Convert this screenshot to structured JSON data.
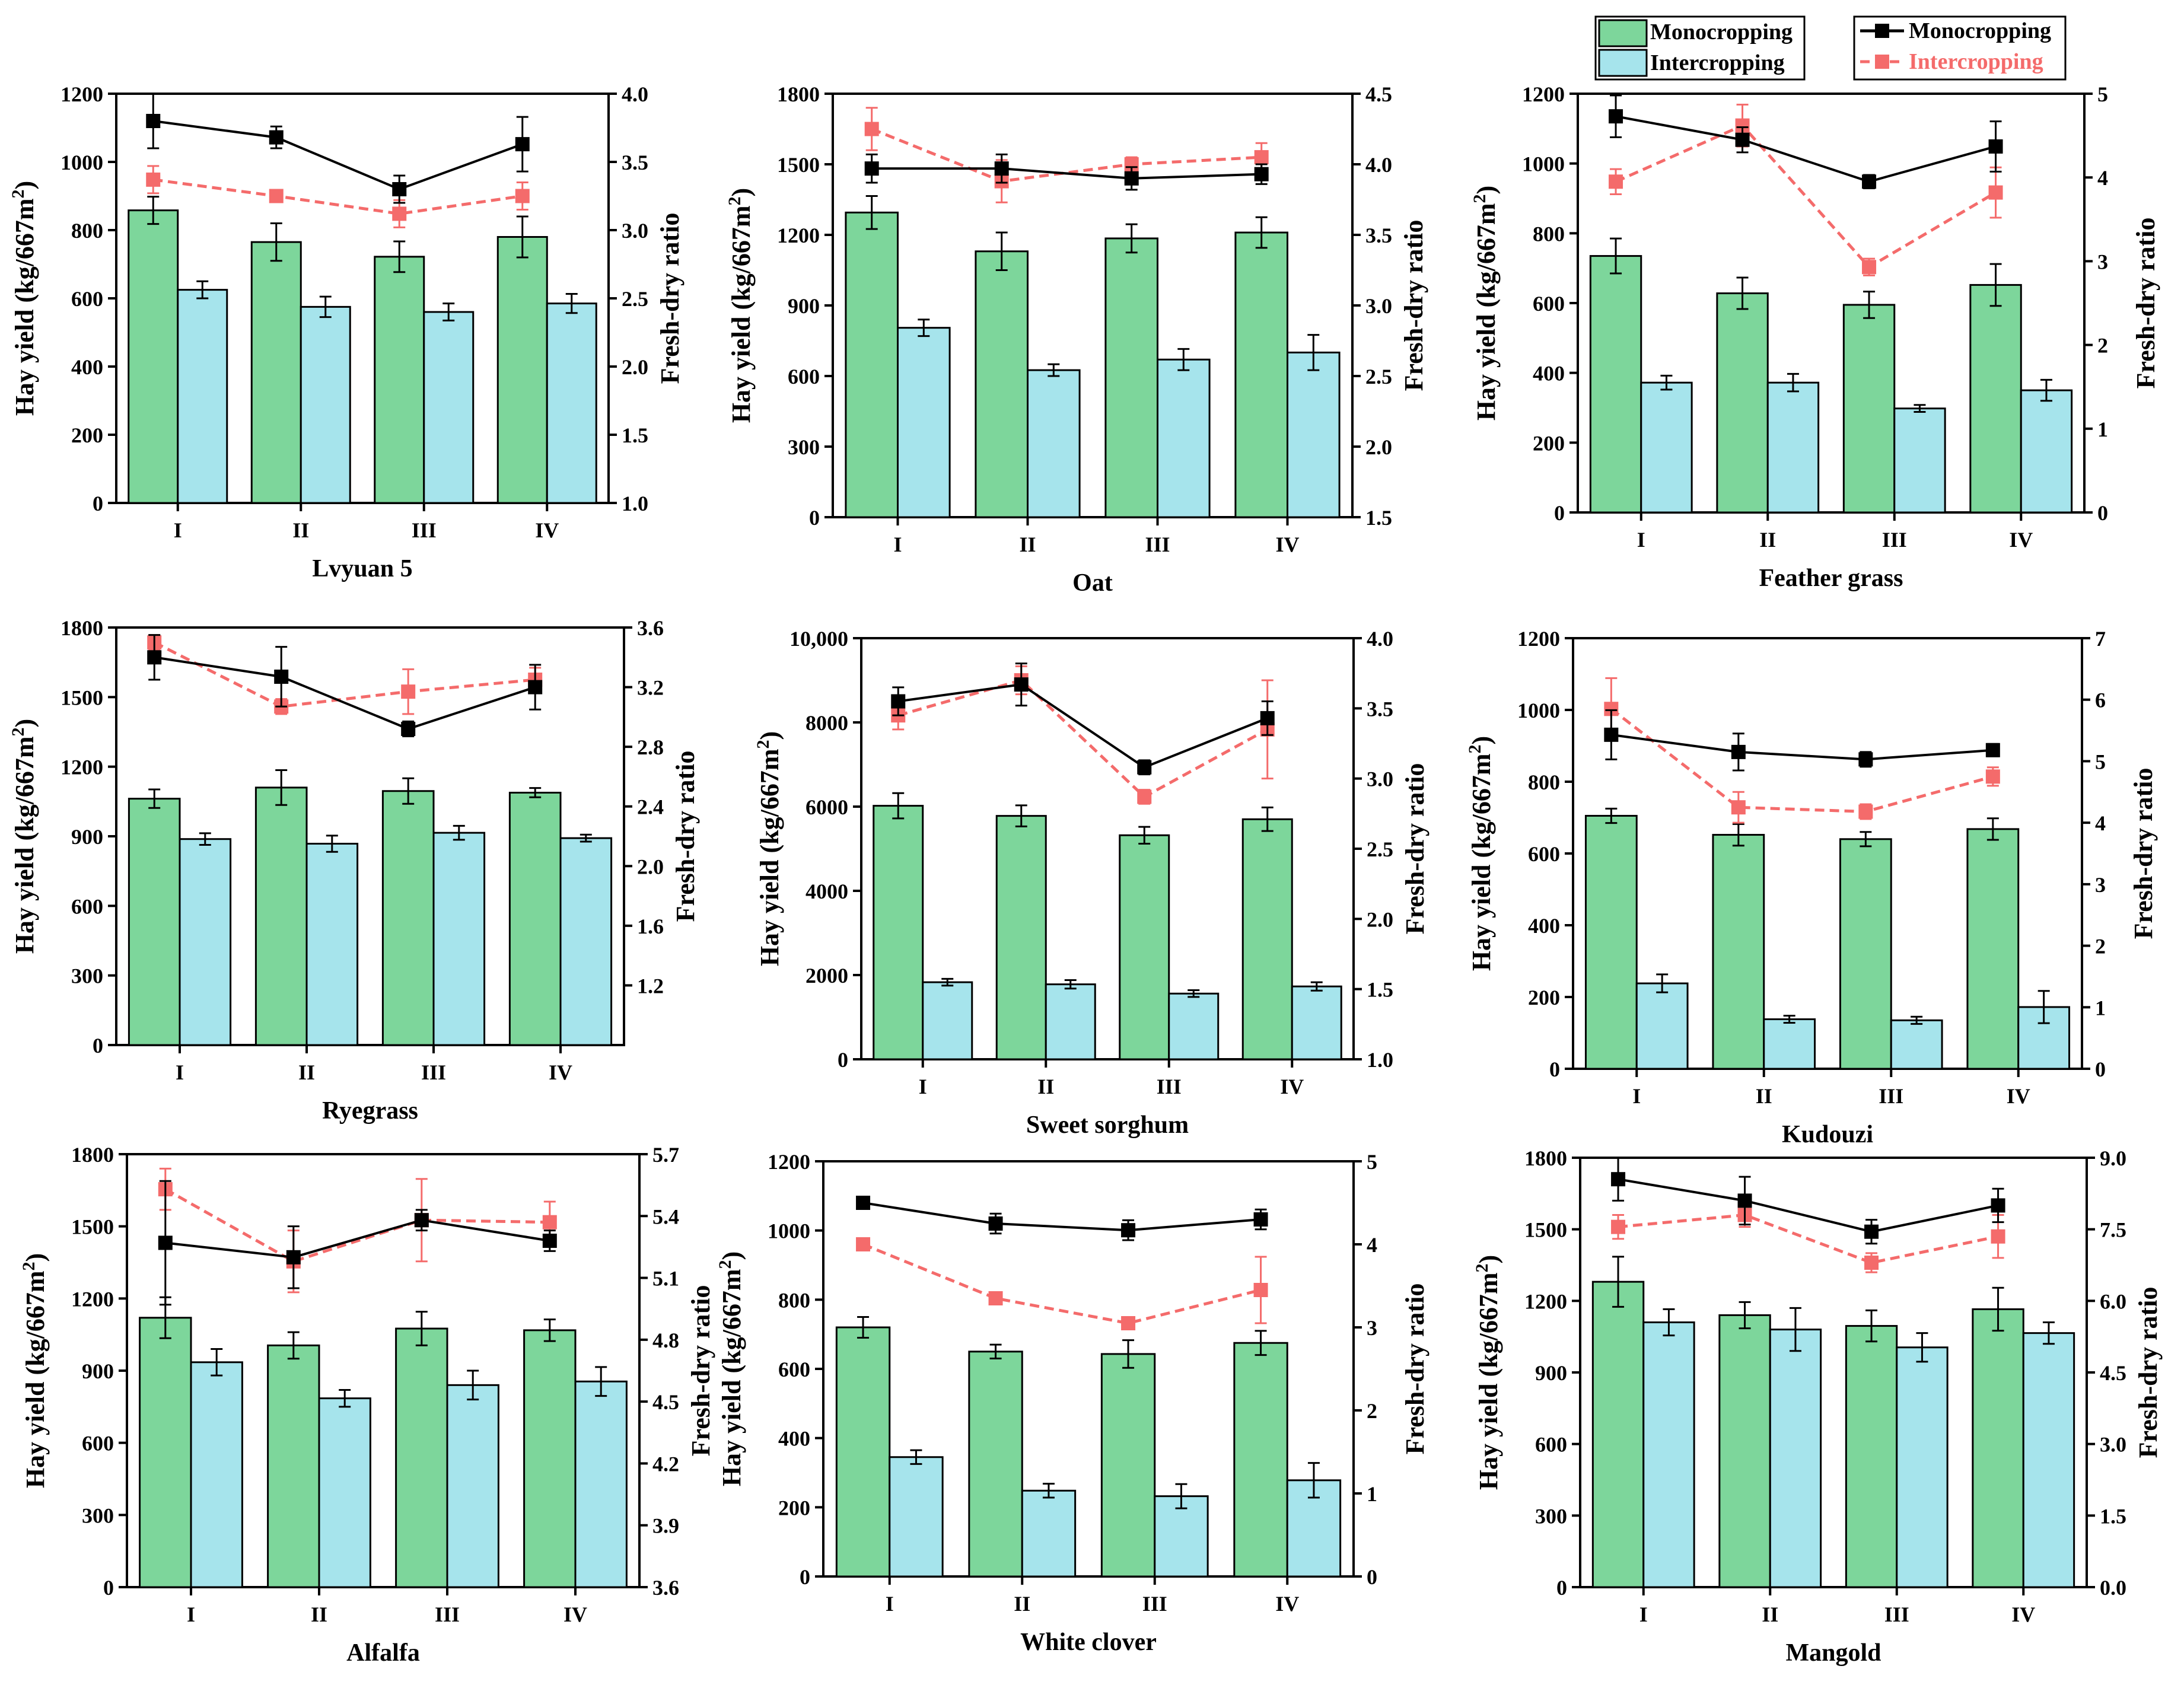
{
  "legend": {
    "bars": [
      "Monocropping",
      "Intercropping"
    ],
    "lines": [
      "Monocropping",
      "Intercropping"
    ]
  },
  "colors": {
    "mono_bar": "#7dd69b",
    "inter_bar": "#a6e4ec",
    "mono_line": "#000000",
    "inter_line": "#f46b6b",
    "axis": "#000000"
  },
  "chart_data": [
    {
      "type": "bar",
      "title": "Lvyuan 5",
      "categories": [
        "I",
        "II",
        "III",
        "IV"
      ],
      "ylabel": "Hay yield (kg/667m2)",
      "y2label": "Fresh-dry ratio",
      "ylim": [
        0,
        1200
      ],
      "yticks": [
        "0",
        "200",
        "400",
        "600",
        "800",
        "1000",
        "1200"
      ],
      "y2lim": [
        1.0,
        4.0
      ],
      "y2ticks": [
        "1.0",
        "1.5",
        "2.0",
        "2.5",
        "3.0",
        "3.5",
        "4.0"
      ],
      "series": [
        {
          "name": "Monocropping",
          "kind": "bar",
          "values": [
            858,
            765,
            722,
            780
          ],
          "errors": [
            40,
            55,
            45,
            60
          ]
        },
        {
          "name": "Intercropping",
          "kind": "bar",
          "values": [
            625,
            575,
            560,
            585
          ],
          "errors": [
            25,
            30,
            25,
            28
          ]
        },
        {
          "name": "Monocropping",
          "kind": "line",
          "values": [
            3.8,
            3.68,
            3.3,
            3.63
          ],
          "errors": [
            0.2,
            0.08,
            0.1,
            0.2
          ]
        },
        {
          "name": "Intercropping",
          "kind": "line",
          "values": [
            3.37,
            3.25,
            3.12,
            3.25
          ],
          "errors": [
            0.1,
            0.02,
            0.1,
            0.1
          ]
        }
      ]
    },
    {
      "type": "bar",
      "title": "Oat",
      "categories": [
        "I",
        "II",
        "III",
        "IV"
      ],
      "ylabel": "Hay yield (kg/667m2)",
      "y2label": "Fresh-dry ratio",
      "ylim": [
        0,
        1800
      ],
      "yticks": [
        "0",
        "300",
        "600",
        "900",
        "1200",
        "1500",
        "1800"
      ],
      "y2lim": [
        1.5,
        4.5
      ],
      "y2ticks": [
        "1.5",
        "2.0",
        "2.5",
        "3.0",
        "3.5",
        "4.0",
        "4.5"
      ],
      "series": [
        {
          "name": "Monocropping",
          "kind": "bar",
          "values": [
            1295,
            1130,
            1185,
            1210
          ],
          "errors": [
            70,
            80,
            60,
            65
          ]
        },
        {
          "name": "Intercropping",
          "kind": "bar",
          "values": [
            805,
            625,
            670,
            700
          ],
          "errors": [
            35,
            25,
            45,
            75
          ]
        },
        {
          "name": "Monocropping",
          "kind": "line",
          "values": [
            3.97,
            3.97,
            3.9,
            3.93
          ],
          "errors": [
            0.1,
            0.1,
            0.08,
            0.07
          ]
        },
        {
          "name": "Intercropping",
          "kind": "line",
          "values": [
            4.25,
            3.88,
            4.0,
            4.05
          ],
          "errors": [
            0.15,
            0.15,
            0.05,
            0.1
          ]
        }
      ]
    },
    {
      "type": "bar",
      "title": "Feather grass",
      "categories": [
        "I",
        "II",
        "III",
        "IV"
      ],
      "ylabel": "Hay yield (kg/667m2)",
      "y2label": "Fresh-dry ratio",
      "ylim": [
        0,
        1200
      ],
      "yticks": [
        "0",
        "200",
        "400",
        "600",
        "800",
        "1000",
        "1200"
      ],
      "y2lim": [
        0,
        5
      ],
      "y2ticks": [
        "0",
        "1",
        "2",
        "3",
        "4",
        "5"
      ],
      "series": [
        {
          "name": "Monocropping",
          "kind": "bar",
          "values": [
            735,
            628,
            595,
            652
          ],
          "errors": [
            50,
            45,
            38,
            60
          ]
        },
        {
          "name": "Intercropping",
          "kind": "bar",
          "values": [
            372,
            372,
            298,
            350
          ],
          "errors": [
            20,
            25,
            10,
            30
          ]
        },
        {
          "name": "Monocropping",
          "kind": "line",
          "values": [
            4.73,
            4.45,
            3.95,
            4.37
          ],
          "errors": [
            0.25,
            0.15,
            0.08,
            0.3
          ]
        },
        {
          "name": "Intercropping",
          "kind": "line",
          "values": [
            3.95,
            4.62,
            2.93,
            3.82
          ],
          "errors": [
            0.15,
            0.25,
            0.1,
            0.3
          ]
        }
      ]
    },
    {
      "type": "bar",
      "title": "Ryegrass",
      "categories": [
        "I",
        "II",
        "III",
        "IV"
      ],
      "ylabel": "Hay yield (kg/667m2)",
      "y2label": "Fresh-dry ratio",
      "ylim": [
        0,
        1800
      ],
      "yticks": [
        "0",
        "300",
        "600",
        "900",
        "1200",
        "1500",
        "1800"
      ],
      "y2lim": [
        0.8,
        3.6
      ],
      "y2ticks": [
        "1.2",
        "1.6",
        "2.0",
        "2.4",
        "2.8",
        "3.2",
        "3.6"
      ],
      "series": [
        {
          "name": "Monocropping",
          "kind": "bar",
          "values": [
            1062,
            1110,
            1095,
            1088
          ],
          "errors": [
            40,
            75,
            55,
            20
          ]
        },
        {
          "name": "Intercropping",
          "kind": "bar",
          "values": [
            888,
            868,
            915,
            892
          ],
          "errors": [
            25,
            35,
            30,
            15
          ]
        },
        {
          "name": "Monocropping",
          "kind": "line",
          "values": [
            3.4,
            3.27,
            2.92,
            3.2
          ],
          "errors": [
            0.15,
            0.2,
            0.05,
            0.15
          ]
        },
        {
          "name": "Intercropping",
          "kind": "line",
          "values": [
            3.5,
            3.07,
            3.17,
            3.25
          ],
          "errors": [
            0.05,
            0.05,
            0.15,
            0.08
          ]
        }
      ]
    },
    {
      "type": "bar",
      "title": "Sweet sorghum",
      "categories": [
        "I",
        "II",
        "III",
        "IV"
      ],
      "ylabel": "Hay yield (kg/667m2)",
      "y2label": "Fresh-dry ratio",
      "ylim": [
        0,
        10000
      ],
      "yticks": [
        "0",
        "2000",
        "4000",
        "6000",
        "8000",
        "10,000"
      ],
      "y2lim": [
        1.0,
        4.0
      ],
      "y2ticks": [
        "1.0",
        "1.5",
        "2.0",
        "2.5",
        "3.0",
        "3.5",
        "4.0"
      ],
      "series": [
        {
          "name": "Monocropping",
          "kind": "bar",
          "values": [
            6020,
            5780,
            5320,
            5700
          ],
          "errors": [
            300,
            250,
            200,
            280
          ]
        },
        {
          "name": "Intercropping",
          "kind": "bar",
          "values": [
            1830,
            1780,
            1560,
            1730
          ],
          "errors": [
            80,
            100,
            80,
            100
          ]
        },
        {
          "name": "Monocropping",
          "kind": "line",
          "values": [
            3.55,
            3.67,
            3.08,
            3.43
          ],
          "errors": [
            0.1,
            0.15,
            0.05,
            0.12
          ]
        },
        {
          "name": "Intercropping",
          "kind": "line",
          "values": [
            3.45,
            3.7,
            2.87,
            3.35
          ],
          "errors": [
            0.1,
            0.1,
            0.05,
            0.35
          ]
        }
      ]
    },
    {
      "type": "bar",
      "title": "Kudouzi",
      "categories": [
        "I",
        "II",
        "III",
        "IV"
      ],
      "ylabel": "Hay yield (kg/667m2)",
      "y2label": "Fresh-dry ratio",
      "ylim": [
        0,
        1200
      ],
      "yticks": [
        "0",
        "200",
        "400",
        "600",
        "800",
        "1000",
        "1200"
      ],
      "y2lim": [
        0,
        7
      ],
      "y2ticks": [
        "0",
        "1",
        "2",
        "3",
        "4",
        "5",
        "6",
        "7"
      ],
      "series": [
        {
          "name": "Monocropping",
          "kind": "bar",
          "values": [
            705,
            652,
            640,
            668
          ],
          "errors": [
            20,
            30,
            20,
            30
          ]
        },
        {
          "name": "Intercropping",
          "kind": "bar",
          "values": [
            238,
            138,
            135,
            172
          ],
          "errors": [
            25,
            10,
            10,
            45
          ]
        },
        {
          "name": "Monocropping",
          "kind": "line",
          "values": [
            5.43,
            5.15,
            5.03,
            5.18
          ],
          "errors": [
            0.4,
            0.3,
            0.12,
            0.1
          ]
        },
        {
          "name": "Intercropping",
          "kind": "line",
          "values": [
            5.85,
            4.25,
            4.18,
            4.75
          ],
          "errors": [
            0.5,
            0.25,
            0.12,
            0.15
          ]
        }
      ]
    },
    {
      "type": "bar",
      "title": "Alfalfa",
      "categories": [
        "I",
        "II",
        "III",
        "IV"
      ],
      "ylabel": "Hay yield (kg/667m2)",
      "y2label": "Fresh-dry ratio",
      "ylim": [
        0,
        1800
      ],
      "yticks": [
        "0",
        "300",
        "600",
        "900",
        "1200",
        "1500",
        "1800"
      ],
      "y2lim": [
        3.6,
        5.7
      ],
      "y2ticks": [
        "3.6",
        "3.9",
        "4.2",
        "4.5",
        "4.8",
        "5.1",
        "5.4",
        "5.7"
      ],
      "series": [
        {
          "name": "Monocropping",
          "kind": "bar",
          "values": [
            1120,
            1005,
            1075,
            1068
          ],
          "errors": [
            85,
            55,
            70,
            45
          ]
        },
        {
          "name": "Intercropping",
          "kind": "bar",
          "values": [
            935,
            785,
            840,
            855
          ],
          "errors": [
            55,
            35,
            60,
            60
          ]
        },
        {
          "name": "Monocropping",
          "kind": "line",
          "values": [
            5.27,
            5.2,
            5.38,
            5.28
          ],
          "errors": [
            0.3,
            0.15,
            0.05,
            0.05
          ]
        },
        {
          "name": "Intercropping",
          "kind": "line",
          "values": [
            5.53,
            5.18,
            5.38,
            5.37
          ],
          "errors": [
            0.1,
            0.15,
            0.2,
            0.1
          ]
        }
      ]
    },
    {
      "type": "bar",
      "title": "White clover",
      "categories": [
        "I",
        "II",
        "III",
        "IV"
      ],
      "ylabel": "Hay yield (kg/667m2)",
      "y2label": "Fresh-dry ratio",
      "ylim": [
        0,
        1200
      ],
      "yticks": [
        "0",
        "200",
        "400",
        "600",
        "800",
        "1000",
        "1200"
      ],
      "y2lim": [
        0,
        5
      ],
      "y2ticks": [
        "0",
        "1",
        "2",
        "3",
        "4",
        "5"
      ],
      "series": [
        {
          "name": "Monocropping",
          "kind": "bar",
          "values": [
            720,
            650,
            643,
            675
          ],
          "errors": [
            30,
            20,
            40,
            35
          ]
        },
        {
          "name": "Intercropping",
          "kind": "bar",
          "values": [
            345,
            248,
            232,
            278
          ],
          "errors": [
            20,
            20,
            35,
            50
          ]
        },
        {
          "name": "Monocropping",
          "kind": "line",
          "values": [
            4.5,
            4.25,
            4.17,
            4.3
          ],
          "errors": [
            0.05,
            0.12,
            0.12,
            0.12
          ]
        },
        {
          "name": "Intercropping",
          "kind": "line",
          "values": [
            4.0,
            3.35,
            3.05,
            3.45
          ],
          "errors": [
            0.03,
            0.05,
            0.05,
            0.4
          ]
        }
      ]
    },
    {
      "type": "bar",
      "title": "Mangold",
      "categories": [
        "I",
        "II",
        "III",
        "IV"
      ],
      "ylabel": "Hay yield (kg/667m2)",
      "y2label": "Fresh-dry ratio",
      "ylim": [
        0,
        1800
      ],
      "yticks": [
        "0",
        "300",
        "600",
        "900",
        "1200",
        "1500",
        "1800"
      ],
      "y2lim": [
        0,
        9
      ],
      "y2ticks": [
        "0.0",
        "1.5",
        "3.0",
        "4.5",
        "6.0",
        "7.5",
        "9.0"
      ],
      "series": [
        {
          "name": "Monocropping",
          "kind": "bar",
          "values": [
            1280,
            1140,
            1095,
            1165
          ],
          "errors": [
            105,
            55,
            65,
            90
          ]
        },
        {
          "name": "Intercropping",
          "kind": "bar",
          "values": [
            1110,
            1080,
            1005,
            1065
          ],
          "errors": [
            55,
            90,
            60,
            45
          ]
        },
        {
          "name": "Monocropping",
          "kind": "line",
          "values": [
            8.55,
            8.1,
            7.45,
            8.0
          ],
          "errors": [
            0.45,
            0.5,
            0.25,
            0.35
          ]
        },
        {
          "name": "Intercropping",
          "kind": "line",
          "values": [
            7.55,
            7.8,
            6.8,
            7.35
          ],
          "errors": [
            0.25,
            0.25,
            0.2,
            0.45
          ]
        }
      ]
    }
  ]
}
